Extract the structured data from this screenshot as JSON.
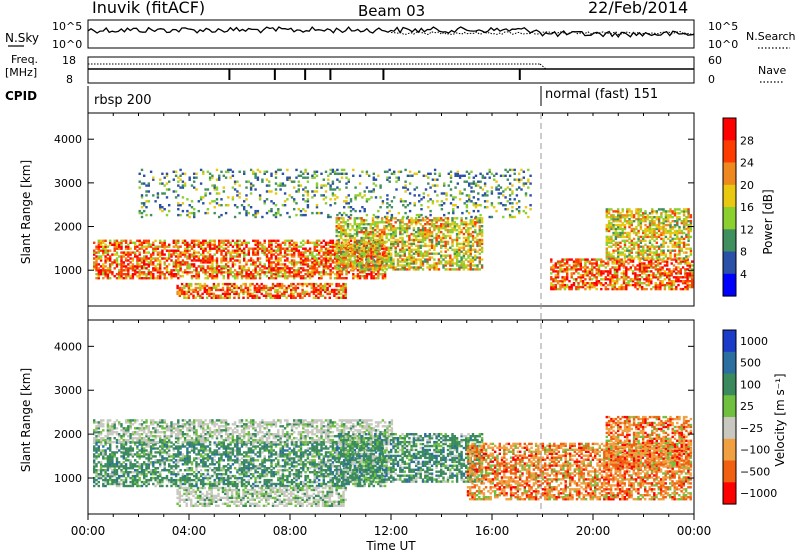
{
  "header": {
    "station": "Inuvik (fitACF)",
    "beam": "Beam 03",
    "date": "22/Feb/2014"
  },
  "top_panels": {
    "nsky_label": "N.Sky",
    "nsky_ticks": [
      "10^5",
      "10^0"
    ],
    "nsky_ticks_right": [
      "10^5",
      "10^0"
    ],
    "nsearch_label": "N.Search",
    "freq_label_line1": "Freq.",
    "freq_label_line2": "[MHz]",
    "freq_ticks": [
      "18",
      "8"
    ],
    "nave_ticks": [
      "60",
      "0"
    ],
    "nave_label": "Nave",
    "cpid_label": "CPID",
    "cpid_segments": [
      {
        "label": "rbsp 200",
        "start_hour": 0
      },
      {
        "label": "normal (fast) 151",
        "start_hour": 18
      }
    ]
  },
  "colors": {
    "power_scale": [
      "#0000ff",
      "#2a50a8",
      "#3f8f5f",
      "#8cd030",
      "#e8c810",
      "#f08820",
      "#ff3c00",
      "#ff0000"
    ],
    "velocity_scale": [
      "#1a3cc8",
      "#2a6fa0",
      "#3a8a5e",
      "#70c040",
      "#c8c8c0",
      "#f0a040",
      "#f06010",
      "#ff0000"
    ]
  },
  "chart_data": [
    {
      "type": "heatmap",
      "title": "",
      "ylabel": "Slant Range [km]",
      "xlabel": "",
      "ylim": [
        180,
        4600
      ],
      "xlim": [
        0,
        24
      ],
      "yticks": [
        1000,
        2000,
        3000,
        4000
      ],
      "colorbar_label": "Power [dB]",
      "colorbar_ticks": [
        "4",
        "8",
        "12",
        "16",
        "20",
        "24",
        "28"
      ],
      "colorbar_range": [
        0,
        32
      ],
      "echo_regions": [
        {
          "x": [
            0.2,
            11.8
          ],
          "range_km": [
            800,
            1700
          ],
          "level": "high"
        },
        {
          "x": [
            3.5,
            10.2
          ],
          "range_km": [
            350,
            700
          ],
          "level": "high"
        },
        {
          "x": [
            9.8,
            15.6
          ],
          "range_km": [
            1000,
            2200
          ],
          "level": "medium"
        },
        {
          "x": [
            18.3,
            23.9
          ],
          "range_km": [
            550,
            1250
          ],
          "level": "high"
        },
        {
          "x": [
            20.5,
            23.9
          ],
          "range_km": [
            1250,
            2400
          ],
          "level": "medium"
        },
        {
          "x": [
            2.0,
            17.5
          ],
          "range_km": [
            2200,
            3300
          ],
          "level": "low"
        }
      ]
    },
    {
      "type": "heatmap",
      "title": "",
      "ylabel": "Slant Range [km]",
      "xlabel": "Time UT",
      "ylim": [
        180,
        4600
      ],
      "xlim": [
        0,
        24
      ],
      "yticks": [
        1000,
        2000,
        3000,
        4000
      ],
      "xticks": [
        "00:00",
        "04:00",
        "08:00",
        "12:00",
        "16:00",
        "20:00",
        "00:00"
      ],
      "colorbar_label": "Velocity [m s⁻¹]",
      "colorbar_ticks": [
        "1000",
        "500",
        "100",
        "25",
        "−25",
        "−100",
        "−500",
        "−1000"
      ],
      "echo_regions": [
        {
          "x": [
            0.2,
            11.8
          ],
          "range_km": [
            800,
            1800
          ],
          "level": "positive"
        },
        {
          "x": [
            3.5,
            10.2
          ],
          "range_km": [
            350,
            800
          ],
          "level": "near-zero"
        },
        {
          "x": [
            0.2,
            12.0
          ],
          "range_km": [
            1800,
            2300
          ],
          "level": "near-zero"
        },
        {
          "x": [
            9.8,
            15.6
          ],
          "range_km": [
            900,
            2000
          ],
          "level": "positive"
        },
        {
          "x": [
            15.0,
            23.9
          ],
          "range_km": [
            500,
            1800
          ],
          "level": "negative"
        },
        {
          "x": [
            20.5,
            23.9
          ],
          "range_km": [
            1200,
            2400
          ],
          "level": "negative"
        }
      ]
    }
  ]
}
